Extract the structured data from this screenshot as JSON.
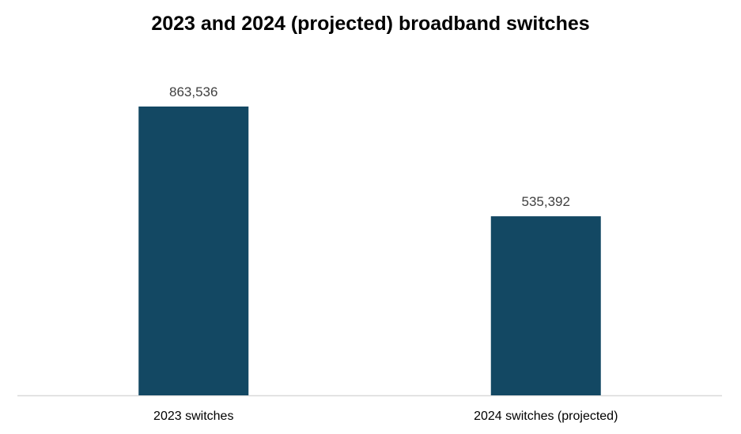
{
  "chart_data": {
    "type": "bar",
    "title": "2023 and 2024 (projected) broadband switches",
    "categories": [
      "2023 switches",
      "2024 switches (projected)"
    ],
    "values": [
      863536,
      535392
    ],
    "data_labels": [
      "863,536",
      "535,392"
    ],
    "xlabel": "",
    "ylabel": "",
    "ylim": [
      0,
      900000
    ],
    "grid": false,
    "legend": "none",
    "bar_color": "#134863",
    "axis_color": "#d9d9d9"
  }
}
